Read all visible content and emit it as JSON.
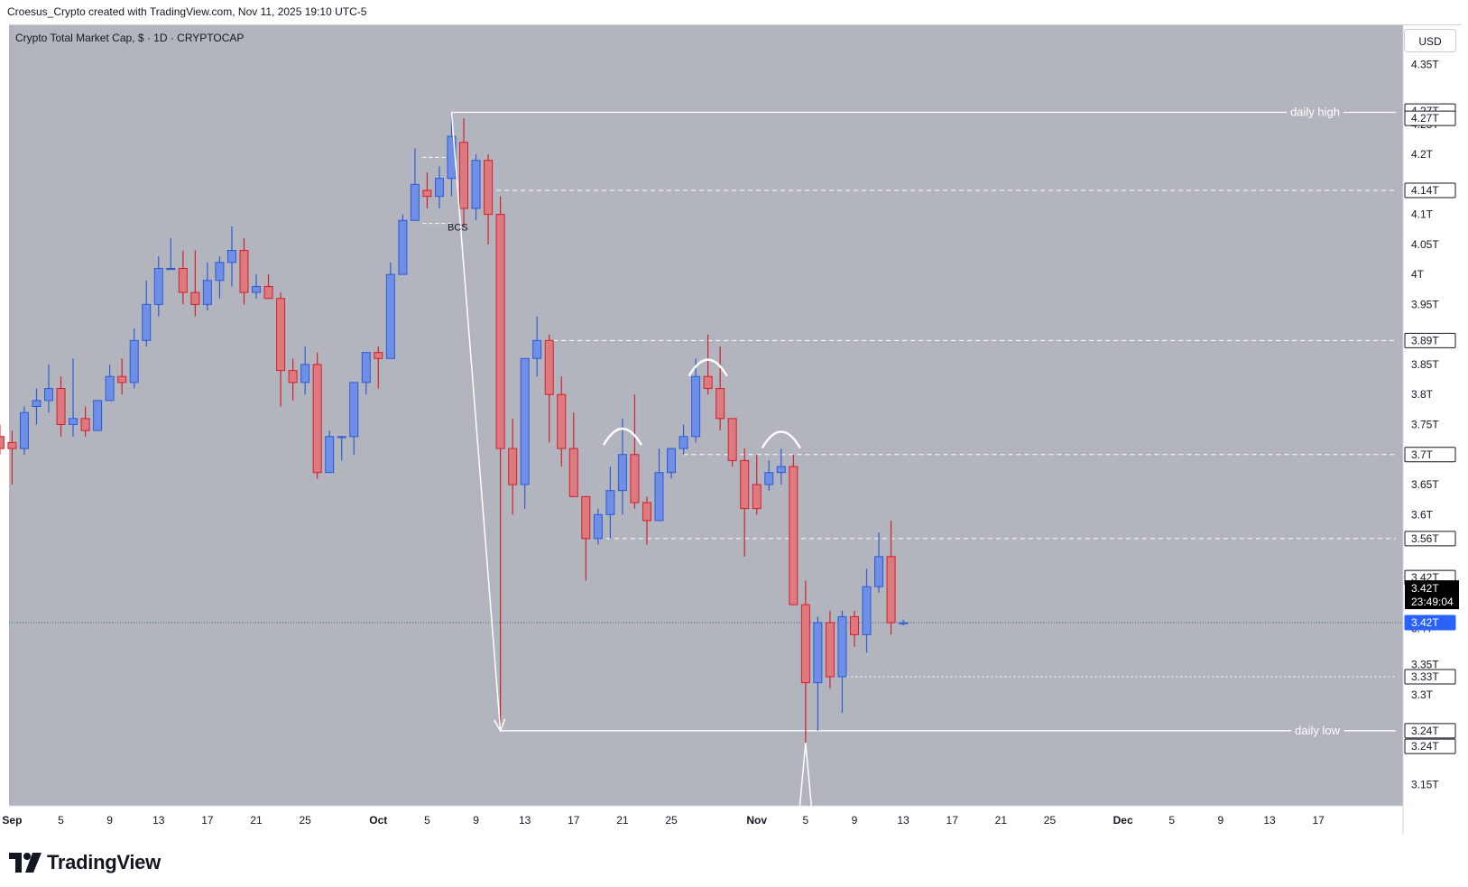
{
  "header": {
    "caption": "Croesus_Crypto created with TradingView.com, Nov 11, 2025 19:10 UTC-5",
    "symbol_line": "Crypto Total Market Cap, $ · 1D · CRYPTOCAP",
    "currency_button": "USD"
  },
  "brand": {
    "name": "TradingView",
    "logo_icon": "tradingview-logo-icon"
  },
  "colors": {
    "chart_background": "#b2b5be",
    "bull": "#6f8ee6",
    "bull_border": "#2d5bd6",
    "bear": "#dc7a80",
    "bear_border": "#d61f2a",
    "line_white": "#ffffff",
    "current_price_tag": "#2962ff",
    "countdown_tag": "#000000"
  },
  "chart_data": {
    "type": "candlestick",
    "title": "Crypto Total Market Cap, $ · 1D · CRYPTOCAP",
    "ylim": [
      3.115,
      4.415
    ],
    "y_ticks": [
      {
        "v": 4.35,
        "label": "4.35T"
      },
      {
        "v": 4.25,
        "label": "4.25T"
      },
      {
        "v": 4.2,
        "label": "4.2T"
      },
      {
        "v": 4.1,
        "label": "4.1T"
      },
      {
        "v": 4.05,
        "label": "4.05T"
      },
      {
        "v": 4.0,
        "label": "4T"
      },
      {
        "v": 3.95,
        "label": "3.95T"
      },
      {
        "v": 3.85,
        "label": "3.85T"
      },
      {
        "v": 3.8,
        "label": "3.8T"
      },
      {
        "v": 3.75,
        "label": "3.75T"
      },
      {
        "v": 3.65,
        "label": "3.65T"
      },
      {
        "v": 3.6,
        "label": "3.6T"
      },
      {
        "v": 3.41,
        "label": "3.4T"
      },
      {
        "v": 3.35,
        "label": "3.35T"
      },
      {
        "v": 3.3,
        "label": "3.3T"
      },
      {
        "v": 3.15,
        "label": "3.15T"
      }
    ],
    "x_ticks": [
      {
        "d": -3,
        "label": "Sep"
      },
      {
        "d": 1,
        "label": "5"
      },
      {
        "d": 5,
        "label": "9"
      },
      {
        "d": 9,
        "label": "13"
      },
      {
        "d": 13,
        "label": "17"
      },
      {
        "d": 17,
        "label": "21"
      },
      {
        "d": 21,
        "label": "25"
      },
      {
        "d": 27,
        "label": "Oct"
      },
      {
        "d": 31,
        "label": "5"
      },
      {
        "d": 35,
        "label": "9"
      },
      {
        "d": 39,
        "label": "13"
      },
      {
        "d": 43,
        "label": "17"
      },
      {
        "d": 47,
        "label": "21"
      },
      {
        "d": 51,
        "label": "25"
      },
      {
        "d": 58,
        "label": "Nov"
      },
      {
        "d": 62,
        "label": "5"
      },
      {
        "d": 66,
        "label": "9"
      },
      {
        "d": 70,
        "label": "13"
      },
      {
        "d": 74,
        "label": "17"
      },
      {
        "d": 78,
        "label": "21"
      },
      {
        "d": 82,
        "label": "25"
      },
      {
        "d": 88,
        "label": "Dec"
      },
      {
        "d": 92,
        "label": "5"
      },
      {
        "d": 96,
        "label": "9"
      },
      {
        "d": 100,
        "label": "13"
      },
      {
        "d": 104,
        "label": "17"
      }
    ],
    "candles": [
      {
        "d": -5,
        "o": 3.74,
        "h": 3.75,
        "l": 3.67,
        "c": 3.72
      },
      {
        "d": -4,
        "o": 3.73,
        "h": 3.75,
        "l": 3.7,
        "c": 3.71
      },
      {
        "d": -3,
        "o": 3.72,
        "h": 3.74,
        "l": 3.65,
        "c": 3.71
      },
      {
        "d": -2,
        "o": 3.71,
        "h": 3.78,
        "l": 3.7,
        "c": 3.77
      },
      {
        "d": -1,
        "o": 3.78,
        "h": 3.81,
        "l": 3.75,
        "c": 3.79
      },
      {
        "d": 0,
        "o": 3.79,
        "h": 3.85,
        "l": 3.77,
        "c": 3.81
      },
      {
        "d": 1,
        "o": 3.81,
        "h": 3.83,
        "l": 3.73,
        "c": 3.75
      },
      {
        "d": 2,
        "o": 3.75,
        "h": 3.86,
        "l": 3.73,
        "c": 3.76
      },
      {
        "d": 3,
        "o": 3.76,
        "h": 3.78,
        "l": 3.73,
        "c": 3.74
      },
      {
        "d": 4,
        "o": 3.74,
        "h": 3.79,
        "l": 3.74,
        "c": 3.79
      },
      {
        "d": 5,
        "o": 3.79,
        "h": 3.85,
        "l": 3.79,
        "c": 3.83
      },
      {
        "d": 6,
        "o": 3.83,
        "h": 3.86,
        "l": 3.8,
        "c": 3.82
      },
      {
        "d": 7,
        "o": 3.82,
        "h": 3.91,
        "l": 3.81,
        "c": 3.89
      },
      {
        "d": 8,
        "o": 3.89,
        "h": 3.99,
        "l": 3.88,
        "c": 3.95
      },
      {
        "d": 9,
        "o": 3.95,
        "h": 4.03,
        "l": 3.93,
        "c": 4.01
      },
      {
        "d": 10,
        "o": 4.01,
        "h": 4.06,
        "l": 4.01,
        "c": 4.01
      },
      {
        "d": 11,
        "o": 4.01,
        "h": 4.04,
        "l": 3.95,
        "c": 3.97
      },
      {
        "d": 12,
        "o": 3.97,
        "h": 4.04,
        "l": 3.93,
        "c": 3.95
      },
      {
        "d": 13,
        "o": 3.95,
        "h": 4.02,
        "l": 3.94,
        "c": 3.99
      },
      {
        "d": 14,
        "o": 3.99,
        "h": 4.03,
        "l": 3.96,
        "c": 4.02
      },
      {
        "d": 15,
        "o": 4.02,
        "h": 4.08,
        "l": 3.98,
        "c": 4.04
      },
      {
        "d": 16,
        "o": 4.04,
        "h": 4.06,
        "l": 3.95,
        "c": 3.97
      },
      {
        "d": 17,
        "o": 3.97,
        "h": 4.0,
        "l": 3.96,
        "c": 3.98
      },
      {
        "d": 18,
        "o": 3.98,
        "h": 4.0,
        "l": 3.96,
        "c": 3.96
      },
      {
        "d": 19,
        "o": 3.96,
        "h": 3.97,
        "l": 3.78,
        "c": 3.84
      },
      {
        "d": 20,
        "o": 3.84,
        "h": 3.86,
        "l": 3.79,
        "c": 3.82
      },
      {
        "d": 21,
        "o": 3.82,
        "h": 3.88,
        "l": 3.8,
        "c": 3.85
      },
      {
        "d": 22,
        "o": 3.85,
        "h": 3.87,
        "l": 3.66,
        "c": 3.67
      },
      {
        "d": 23,
        "o": 3.67,
        "h": 3.74,
        "l": 3.67,
        "c": 3.73
      },
      {
        "d": 24,
        "o": 3.73,
        "h": 3.73,
        "l": 3.69,
        "c": 3.73
      },
      {
        "d": 25,
        "o": 3.73,
        "h": 3.82,
        "l": 3.7,
        "c": 3.82
      },
      {
        "d": 26,
        "o": 3.82,
        "h": 3.87,
        "l": 3.8,
        "c": 3.87
      },
      {
        "d": 27,
        "o": 3.87,
        "h": 3.88,
        "l": 3.81,
        "c": 3.86
      },
      {
        "d": 28,
        "o": 3.86,
        "h": 4.02,
        "l": 3.86,
        "c": 4.0
      },
      {
        "d": 29,
        "o": 4.0,
        "h": 4.1,
        "l": 4.0,
        "c": 4.09
      },
      {
        "d": 30,
        "o": 4.09,
        "h": 4.21,
        "l": 4.09,
        "c": 4.15
      },
      {
        "d": 31,
        "o": 4.14,
        "h": 4.17,
        "l": 4.11,
        "c": 4.13
      },
      {
        "d": 32,
        "o": 4.13,
        "h": 4.18,
        "l": 4.11,
        "c": 4.16
      },
      {
        "d": 33,
        "o": 4.16,
        "h": 4.27,
        "l": 4.13,
        "c": 4.23
      },
      {
        "d": 34,
        "o": 4.22,
        "h": 4.26,
        "l": 4.08,
        "c": 4.11
      },
      {
        "d": 35,
        "o": 4.11,
        "h": 4.2,
        "l": 4.09,
        "c": 4.19
      },
      {
        "d": 36,
        "o": 4.19,
        "h": 4.2,
        "l": 4.05,
        "c": 4.1
      },
      {
        "d": 37,
        "o": 4.1,
        "h": 4.13,
        "l": 3.24,
        "c": 3.71
      },
      {
        "d": 38,
        "o": 3.71,
        "h": 3.76,
        "l": 3.6,
        "c": 3.65
      },
      {
        "d": 39,
        "o": 3.65,
        "h": 3.86,
        "l": 3.61,
        "c": 3.86
      },
      {
        "d": 40,
        "o": 3.86,
        "h": 3.93,
        "l": 3.83,
        "c": 3.89
      },
      {
        "d": 41,
        "o": 3.89,
        "h": 3.9,
        "l": 3.72,
        "c": 3.8
      },
      {
        "d": 42,
        "o": 3.8,
        "h": 3.83,
        "l": 3.68,
        "c": 3.71
      },
      {
        "d": 43,
        "o": 3.71,
        "h": 3.77,
        "l": 3.63,
        "c": 3.63
      },
      {
        "d": 44,
        "o": 3.63,
        "h": 3.63,
        "l": 3.49,
        "c": 3.56
      },
      {
        "d": 45,
        "o": 3.56,
        "h": 3.61,
        "l": 3.55,
        "c": 3.6
      },
      {
        "d": 46,
        "o": 3.6,
        "h": 3.68,
        "l": 3.56,
        "c": 3.64
      },
      {
        "d": 47,
        "o": 3.64,
        "h": 3.76,
        "l": 3.6,
        "c": 3.7
      },
      {
        "d": 48,
        "o": 3.7,
        "h": 3.8,
        "l": 3.61,
        "c": 3.62
      },
      {
        "d": 49,
        "o": 3.62,
        "h": 3.63,
        "l": 3.55,
        "c": 3.59
      },
      {
        "d": 50,
        "o": 3.59,
        "h": 3.71,
        "l": 3.59,
        "c": 3.67
      },
      {
        "d": 51,
        "o": 3.67,
        "h": 3.71,
        "l": 3.66,
        "c": 3.71
      },
      {
        "d": 52,
        "o": 3.71,
        "h": 3.75,
        "l": 3.7,
        "c": 3.73
      },
      {
        "d": 53,
        "o": 3.73,
        "h": 3.86,
        "l": 3.72,
        "c": 3.83
      },
      {
        "d": 54,
        "o": 3.83,
        "h": 3.9,
        "l": 3.8,
        "c": 3.81
      },
      {
        "d": 55,
        "o": 3.81,
        "h": 3.88,
        "l": 3.74,
        "c": 3.76
      },
      {
        "d": 56,
        "o": 3.76,
        "h": 3.76,
        "l": 3.68,
        "c": 3.69
      },
      {
        "d": 57,
        "o": 3.69,
        "h": 3.71,
        "l": 3.53,
        "c": 3.61
      },
      {
        "d": 58,
        "o": 3.65,
        "h": 3.7,
        "l": 3.6,
        "c": 3.61
      },
      {
        "d": 59,
        "o": 3.65,
        "h": 3.69,
        "l": 3.64,
        "c": 3.67
      },
      {
        "d": 60,
        "o": 3.67,
        "h": 3.71,
        "l": 3.65,
        "c": 3.68
      },
      {
        "d": 61,
        "o": 3.68,
        "h": 3.7,
        "l": 3.45,
        "c": 3.45
      },
      {
        "d": 62,
        "o": 3.45,
        "h": 3.49,
        "l": 3.22,
        "c": 3.32
      },
      {
        "d": 63,
        "o": 3.32,
        "h": 3.43,
        "l": 3.24,
        "c": 3.42
      },
      {
        "d": 64,
        "o": 3.42,
        "h": 3.44,
        "l": 3.31,
        "c": 3.33
      },
      {
        "d": 65,
        "o": 3.33,
        "h": 3.44,
        "l": 3.27,
        "c": 3.43
      },
      {
        "d": 66,
        "o": 3.43,
        "h": 3.44,
        "l": 3.38,
        "c": 3.4
      },
      {
        "d": 67,
        "o": 3.4,
        "h": 3.51,
        "l": 3.37,
        "c": 3.48
      },
      {
        "d": 68,
        "o": 3.48,
        "h": 3.57,
        "l": 3.47,
        "c": 3.53
      },
      {
        "d": 69,
        "o": 3.53,
        "h": 3.59,
        "l": 3.4,
        "c": 3.42
      },
      {
        "d": 70,
        "o": 3.42,
        "h": 3.425,
        "l": 3.415,
        "c": 3.42
      }
    ],
    "horizontal_lines": [
      {
        "y": 4.27,
        "d_from": 33,
        "style": "solid",
        "label": "daily high"
      },
      {
        "y": 4.14,
        "d_from": 36,
        "style": "dashed",
        "label": ""
      },
      {
        "y": 3.89,
        "d_from": 40,
        "style": "dashed",
        "label": ""
      },
      {
        "y": 3.7,
        "d_from": 52,
        "style": "dashed",
        "label": ""
      },
      {
        "y": 3.56,
        "d_from": 45,
        "style": "dashed",
        "label": ""
      },
      {
        "y": 3.33,
        "d_from": 65,
        "style": "dotted",
        "label": ""
      },
      {
        "y": 3.24,
        "d_from": 37,
        "style": "solid",
        "label": "daily low"
      }
    ],
    "local_dashed_lines": [
      {
        "y": 4.195,
        "d_from": 31,
        "d_to": 33
      },
      {
        "y": 4.085,
        "d_from": 31,
        "d_to": 33
      }
    ],
    "arrows": [
      {
        "d_from": 33,
        "y_from": 4.27,
        "d_to": 37,
        "y_to": 3.24
      },
      {
        "d_from": 62,
        "y_from": 3.22,
        "d_to": 62,
        "y_to": 3.12
      }
    ],
    "arcs": [
      {
        "d": 47,
        "y": 3.74
      },
      {
        "d": 54,
        "y": 3.855
      },
      {
        "d": 60,
        "y": 3.735
      }
    ],
    "annotations": [
      {
        "text": "BCS",
        "d": 33.5,
        "y": 4.073
      }
    ],
    "price_tags": [
      {
        "y": 4.272,
        "label": "4.27T",
        "style": "white"
      },
      {
        "y": 4.26,
        "label": "4.27T",
        "style": "white"
      },
      {
        "y": 4.14,
        "label": "4.14T",
        "style": "white"
      },
      {
        "y": 3.89,
        "label": "3.89T",
        "style": "white"
      },
      {
        "y": 3.7,
        "label": "3.7T",
        "style": "white"
      },
      {
        "y": 3.56,
        "label": "3.56T",
        "style": "white"
      },
      {
        "y": 3.495,
        "label": "3.42T",
        "style": "white"
      },
      {
        "y": 3.42,
        "label": "3.42T",
        "style": "blue"
      },
      {
        "y": 3.33,
        "label": "3.33T",
        "style": "white"
      },
      {
        "y": 3.24,
        "label": "3.24T",
        "style": "white"
      },
      {
        "y": 3.214,
        "label": "3.24T",
        "style": "white"
      }
    ],
    "countdown": {
      "y": 3.465,
      "price": "3.42T",
      "time": "23:49:04"
    },
    "current_price": 3.42
  }
}
